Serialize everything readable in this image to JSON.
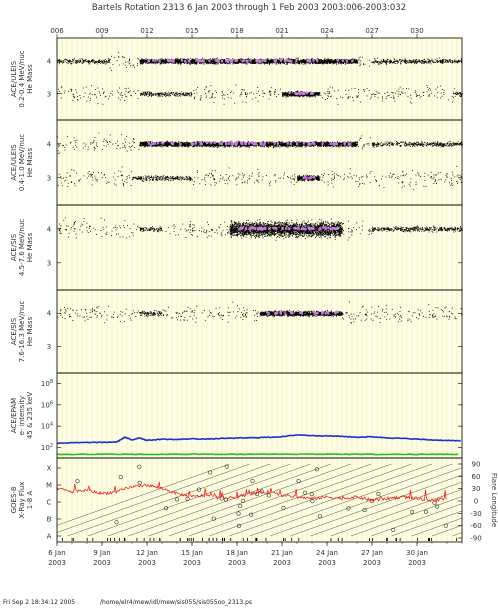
{
  "header": {
    "title": "Bartels Rotation 2313     6 Jan 2003 through 1 Feb 2003     2003:006-2003:032"
  },
  "footer": {
    "timestamp": "Fri Sep  2 18:34:12 2005",
    "path": "/home/elr4/mew/idl/mew/sis055/sis055oo_2313.ps"
  },
  "top_axis": {
    "labels": [
      "006",
      "009",
      "012",
      "015",
      "018",
      "021",
      "024",
      "027",
      "030"
    ],
    "label_days": [
      6,
      9,
      12,
      15,
      18,
      21,
      24,
      27,
      30
    ]
  },
  "colors": {
    "background": "#fdfde8",
    "gridline": "#f0e98a",
    "points": "#000000",
    "dense": "#c879e0",
    "blue_series": "#1f2fd0",
    "green_series": "#22c022",
    "red_series": "#ee1010",
    "frame": "#000000"
  },
  "chart_data": [
    {
      "type": "scatter",
      "panel": "ACE/ULEIS 0.2-0.4 MeV/nuc",
      "ylabel": [
        "ACE/ULEIS",
        "0.2-0.4 MeV/nuc",
        "He Mass"
      ],
      "yticks": [
        3,
        4
      ],
      "ylim": [
        2.2,
        4.7
      ],
      "xlim": [
        6,
        33
      ],
      "bands": [
        {
          "center": 4,
          "segments": [
            [
              6,
              9.5,
              "medium"
            ],
            [
              9.5,
              11.5,
              "sparse"
            ],
            [
              11.5,
              26,
              "dense"
            ],
            [
              26,
              27,
              "sparse"
            ],
            [
              27,
              33,
              "medium"
            ]
          ]
        },
        {
          "center": 3,
          "segments": [
            [
              6,
              11.5,
              "sparse"
            ],
            [
              11.5,
              15,
              "medium"
            ],
            [
              15,
              21,
              "sparse"
            ],
            [
              21,
              23.5,
              "dense"
            ],
            [
              23.5,
              32.5,
              "sparse"
            ],
            [
              32.5,
              33,
              "medium"
            ]
          ]
        }
      ]
    },
    {
      "type": "scatter",
      "panel": "ACE/ULEIS 0.4-1.0 MeV/nuc",
      "ylabel": [
        "ACE/ULEIS",
        "0.4-1.0 MeV/nuc",
        "He Mass"
      ],
      "yticks": [
        3,
        4
      ],
      "ylim": [
        2.2,
        4.7
      ],
      "xlim": [
        6,
        33
      ],
      "bands": [
        {
          "center": 4,
          "segments": [
            [
              6,
              11.5,
              "sparse"
            ],
            [
              11.5,
              26,
              "dense"
            ],
            [
              26,
              27,
              "sparse"
            ],
            [
              27,
              33,
              "medium"
            ]
          ]
        },
        {
          "center": 3,
          "segments": [
            [
              6,
              11,
              "sparse"
            ],
            [
              11,
              15,
              "medium"
            ],
            [
              15,
              22,
              "sparse"
            ],
            [
              22,
              23.5,
              "dense"
            ],
            [
              23.5,
              33,
              "sparse"
            ]
          ]
        }
      ]
    },
    {
      "type": "scatter",
      "panel": "ACE/SIS 4.5-7.6 MeV/nuc",
      "ylabel": [
        "ACE/SIS",
        "4.5-7.6 MeV/nuc",
        "He Mass"
      ],
      "yticks": [
        3,
        4
      ],
      "ylim": [
        2.2,
        4.7
      ],
      "xlim": [
        6,
        33
      ],
      "bands": [
        {
          "center": 4,
          "segments": [
            [
              6,
              11.5,
              "sparse"
            ],
            [
              11.5,
              13,
              "medium"
            ],
            [
              13,
              17.5,
              "sparse"
            ],
            [
              17.5,
              25,
              "very_dense"
            ],
            [
              25,
              27,
              "sparse"
            ],
            [
              27,
              33,
              "medium"
            ]
          ]
        }
      ]
    },
    {
      "type": "scatter",
      "panel": "ACE/SIS 7.6-16.3 MeV/nuc",
      "ylabel": [
        "ACE/SIS",
        "7.6-16.3 MeV/nuc",
        "He Mass"
      ],
      "yticks": [
        3,
        4
      ],
      "ylim": [
        2.2,
        4.7
      ],
      "xlim": [
        6,
        33
      ],
      "bands": [
        {
          "center": 4,
          "segments": [
            [
              6,
              11.5,
              "sparse"
            ],
            [
              11.5,
              13,
              "medium"
            ],
            [
              13,
              19.5,
              "sparse"
            ],
            [
              19.5,
              25,
              "dense"
            ],
            [
              25,
              33,
              "sparse"
            ]
          ]
        }
      ]
    },
    {
      "type": "line",
      "panel": "ACE/EPAM e- intensity 45 & 235 keV",
      "ylabel": [
        "ACE/EPAM",
        "e- intensity",
        "45 & 235 keV"
      ],
      "yscale": "log",
      "ytick_labels": [
        "10^2",
        "10^4",
        "10^6",
        "10^8"
      ],
      "ytick_values": [
        100,
        10000,
        1000000,
        100000000
      ],
      "ylim": [
        10,
        1000000000
      ],
      "xlim": [
        6,
        33
      ],
      "series": [
        {
          "color": "blue",
          "x": [
            6,
            7,
            8,
            9,
            10,
            10.5,
            11,
            11.5,
            12,
            13,
            14,
            15,
            16,
            17,
            18,
            19,
            20,
            21,
            22,
            23,
            24,
            25,
            26,
            27,
            28,
            29,
            30,
            31,
            32,
            33
          ],
          "y": [
            250,
            270,
            290,
            300,
            320,
            900,
            500,
            800,
            450,
            600,
            550,
            650,
            600,
            700,
            750,
            800,
            900,
            1000,
            1500,
            1300,
            1200,
            1100,
            900,
            1000,
            800,
            700,
            600,
            500,
            450,
            400
          ]
        },
        {
          "color": "green",
          "x": [
            6,
            9,
            12,
            15,
            18,
            21,
            24,
            27,
            30,
            33
          ],
          "y": [
            22,
            22,
            22,
            23,
            22,
            23,
            23,
            22,
            22,
            22
          ]
        }
      ]
    },
    {
      "type": "line",
      "panel": "GOES-8 X-Ray Flux 1-8 A",
      "ylabel": [
        "GOES-8",
        "X-Ray Flux",
        "1-8 A"
      ],
      "ytick_labels": [
        "A",
        "B",
        "C",
        "M",
        "X"
      ],
      "right_axis_label": "Flare Longitude",
      "right_ytick_labels": [
        "-90",
        "-60",
        "-30",
        "0",
        "30",
        "60",
        "90"
      ],
      "xlim": [
        6,
        33
      ],
      "series": [
        {
          "color": "red",
          "x": [
            6,
            7,
            8,
            9,
            10,
            11,
            12,
            13,
            14,
            15,
            16,
            17,
            18,
            19,
            20,
            21,
            22,
            23,
            24,
            25,
            26,
            27,
            28,
            29,
            30,
            31,
            32
          ],
          "y": [
            2.8,
            2.6,
            2.7,
            2.5,
            2.6,
            2.9,
            3.0,
            2.8,
            2.5,
            2.3,
            2.4,
            2.2,
            2.3,
            2.5,
            2.6,
            2.4,
            2.3,
            2.2,
            2.3,
            2.2,
            2.3,
            2.1,
            2.2,
            2.3,
            2.2,
            2.1,
            2.2
          ]
        }
      ]
    }
  ],
  "bottom_axis": {
    "labels": [
      {
        "day": "6 Jan",
        "year": "2003",
        "x": 6
      },
      {
        "day": "9 Jan",
        "year": "2003",
        "x": 9
      },
      {
        "day": "12 Jan",
        "year": "2003",
        "x": 12
      },
      {
        "day": "15 Jan",
        "year": "2003",
        "x": 15
      },
      {
        "day": "18 Jan",
        "year": "2003",
        "x": 18
      },
      {
        "day": "21 Jan",
        "year": "2003",
        "x": 21
      },
      {
        "day": "24 Jan",
        "year": "2003",
        "x": 24
      },
      {
        "day": "27 Jan",
        "year": "2003",
        "x": 27
      },
      {
        "day": "30 Jan",
        "year": "2003",
        "x": 30
      }
    ]
  }
}
